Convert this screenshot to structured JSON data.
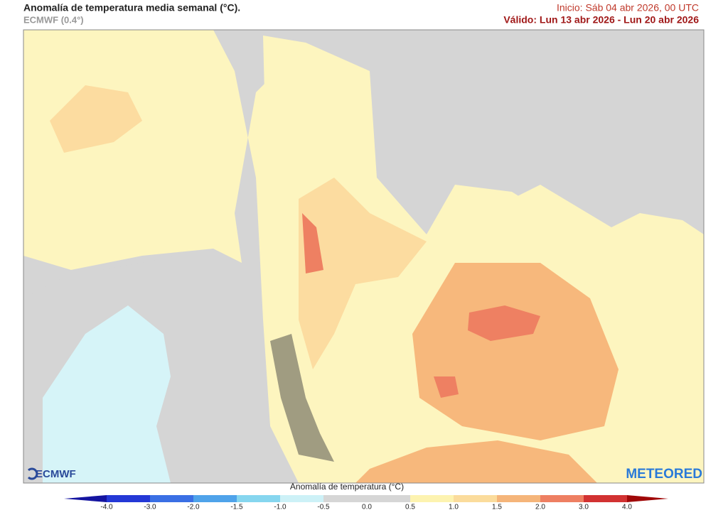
{
  "header": {
    "title": "Anomalía de temperatura media semanal (°C).",
    "model": "ECMWF (0.4°)",
    "init": "Inicio: Sáb 04 abr 2026, 00 UTC",
    "valid": "Válido: Lun 13 abr 2026 - Lun 20 abr 2026"
  },
  "logos": {
    "left": "ECMWF",
    "right": "METEORED"
  },
  "colorbar": {
    "title": "Anomalía de temperatura (°C)",
    "ticks": [
      "-4.0",
      "-3.0",
      "-2.0",
      "-1.5",
      "-1.0",
      "-0.5",
      "0.0",
      "0.5",
      "1.0",
      "1.5",
      "2.0",
      "3.0",
      "4.0"
    ],
    "colors": [
      "#2438d6",
      "#3a6fe4",
      "#4fa3ea",
      "#86d6ef",
      "#cdf1f7",
      "#d6d6d6",
      "#d6d6d6",
      "#fdf3b0",
      "#fbdc9c",
      "#f5b57a",
      "#ee7f62",
      "#d23232"
    ],
    "under": "#1414a0",
    "over": "#a00808"
  }
}
